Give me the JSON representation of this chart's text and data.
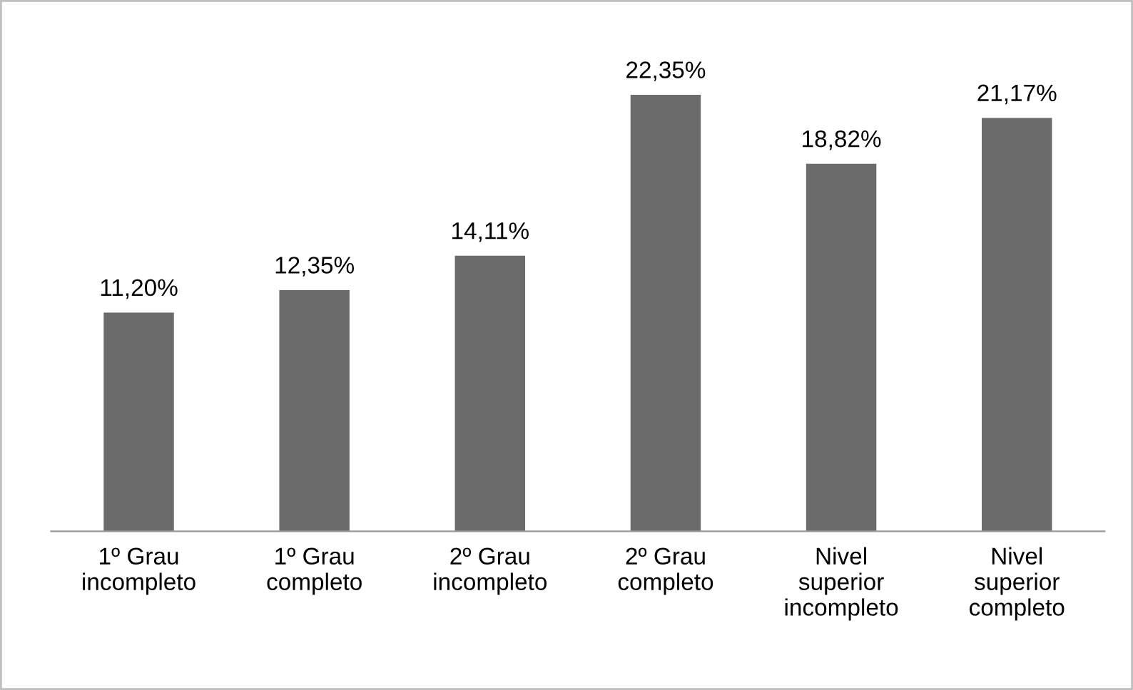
{
  "chart_data": {
    "type": "bar",
    "categories": [
      "1º Grau\nincompleto",
      "1º Grau\ncompleto",
      "2º Grau\nincompleto",
      "2º Grau\ncompleto",
      "Nivel\nsuperior\nincompleto",
      "Nivel\nsuperior\ncompleto"
    ],
    "values": [
      11.2,
      12.35,
      14.11,
      22.35,
      18.82,
      21.17
    ],
    "value_labels": [
      "11,20%",
      "12,35%",
      "14,11%",
      "22,35%",
      "18,82%",
      "21,17%"
    ],
    "color": "#6b6b6b",
    "grid": false,
    "legend": false
  }
}
